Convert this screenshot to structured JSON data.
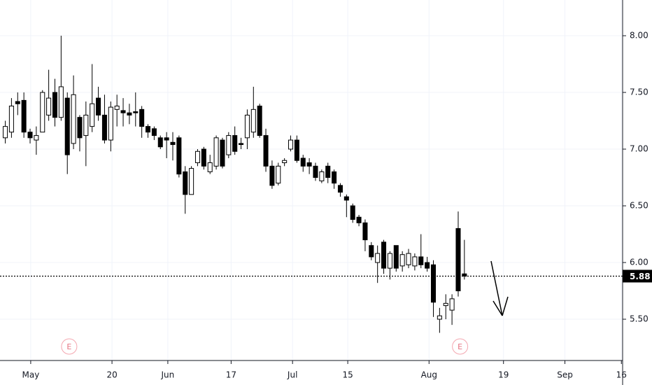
{
  "chart_data": {
    "type": "candlestick",
    "x": [
      0,
      1,
      2,
      3,
      4,
      5,
      6,
      7,
      8,
      9,
      10,
      11,
      12,
      13,
      14,
      15,
      16,
      17,
      18,
      19,
      20,
      21,
      22,
      23,
      24,
      25,
      26,
      27,
      28,
      29,
      30,
      31,
      32,
      33,
      34,
      35,
      36,
      37,
      38,
      39,
      40,
      41,
      42,
      43,
      44,
      45,
      46,
      47,
      48,
      49,
      50,
      51,
      52,
      53,
      54,
      55,
      56,
      57,
      58,
      59,
      60,
      61,
      62,
      63,
      64,
      65,
      66,
      67,
      68,
      69,
      70,
      71,
      72,
      73,
      74
    ],
    "open": [
      7.1,
      7.15,
      7.42,
      7.43,
      7.15,
      7.08,
      7.15,
      7.3,
      7.5,
      7.28,
      7.45,
      7.05,
      7.28,
      7.12,
      7.2,
      7.45,
      7.3,
      7.08,
      7.35,
      7.34,
      7.32,
      7.33,
      7.35,
      7.2,
      7.18,
      7.1,
      7.1,
      7.06,
      7.1,
      6.8,
      6.6,
      6.88,
      7.0,
      6.8,
      6.85,
      7.08,
      6.95,
      7.12,
      7.05,
      7.1,
      7.15,
      7.38,
      7.12,
      6.85,
      6.7,
      6.88,
      7.0,
      7.08,
      6.92,
      6.88,
      6.85,
      6.72,
      6.85,
      6.8,
      6.68,
      6.58,
      6.5,
      6.4,
      6.35,
      6.15,
      6.0,
      6.18,
      5.95,
      6.15,
      5.97,
      5.98,
      5.97,
      6.05,
      6.0,
      5.98,
      5.5,
      5.62,
      5.58,
      6.3,
      5.9
    ],
    "high": [
      7.25,
      7.45,
      7.5,
      7.5,
      7.18,
      7.2,
      7.52,
      7.7,
      7.62,
      8.0,
      7.5,
      7.65,
      7.3,
      7.42,
      7.75,
      7.55,
      7.48,
      7.42,
      7.48,
      7.45,
      7.4,
      7.5,
      7.38,
      7.22,
      7.2,
      7.12,
      7.15,
      7.15,
      7.12,
      6.85,
      6.85,
      7.0,
      7.02,
      6.95,
      7.12,
      7.1,
      7.15,
      7.2,
      7.1,
      7.35,
      7.55,
      7.4,
      7.18,
      6.9,
      6.88,
      6.92,
      7.12,
      7.12,
      6.95,
      6.92,
      6.88,
      6.82,
      6.88,
      6.82,
      6.7,
      6.6,
      6.52,
      6.42,
      6.38,
      6.18,
      6.15,
      6.2,
      6.1,
      6.15,
      6.1,
      6.12,
      6.08,
      6.25,
      6.05,
      6.02,
      5.6,
      5.72,
      5.72,
      6.45,
      6.2
    ],
    "low": [
      7.05,
      7.1,
      7.3,
      7.1,
      7.05,
      6.95,
      7.15,
      7.25,
      7.2,
      7.25,
      6.78,
      7.0,
      6.98,
      6.85,
      7.15,
      7.25,
      7.05,
      6.98,
      7.2,
      7.2,
      7.22,
      7.2,
      7.1,
      7.1,
      7.08,
      7.0,
      6.92,
      6.9,
      6.75,
      6.43,
      6.6,
      6.85,
      6.82,
      6.78,
      6.82,
      6.83,
      6.92,
      6.95,
      7.0,
      7.0,
      7.1,
      7.1,
      6.8,
      6.65,
      6.68,
      6.85,
      6.98,
      6.88,
      6.8,
      6.78,
      6.72,
      6.7,
      6.7,
      6.65,
      6.58,
      6.4,
      6.35,
      6.32,
      6.1,
      6.02,
      5.82,
      5.9,
      5.85,
      5.92,
      5.92,
      5.95,
      5.93,
      5.95,
      5.92,
      5.52,
      5.38,
      5.5,
      5.45,
      5.7,
      5.85
    ],
    "close": [
      7.2,
      7.38,
      7.4,
      7.15,
      7.1,
      7.12,
      7.5,
      7.45,
      7.28,
      7.55,
      6.95,
      7.48,
      7.1,
      7.3,
      7.4,
      7.3,
      7.08,
      7.37,
      7.38,
      7.32,
      7.3,
      7.32,
      7.2,
      7.15,
      7.12,
      7.02,
      7.08,
      7.04,
      6.78,
      6.6,
      6.83,
      6.98,
      6.85,
      6.88,
      7.1,
      6.85,
      7.12,
      6.98,
      7.04,
      7.3,
      7.35,
      7.12,
      6.85,
      6.68,
      6.85,
      6.9,
      7.08,
      6.9,
      6.85,
      6.85,
      6.75,
      6.8,
      6.75,
      6.7,
      6.62,
      6.55,
      6.38,
      6.35,
      6.2,
      6.05,
      6.08,
      5.95,
      6.08,
      5.95,
      6.07,
      6.08,
      6.05,
      5.98,
      5.95,
      5.65,
      5.53,
      5.64,
      5.68,
      5.75,
      5.88
    ],
    "colors": {
      "up": "#ffffff",
      "down": "#000000",
      "outline": "#000000"
    },
    "xlim": [
      -0.85,
      99.5
    ],
    "ylim": [
      5.136,
      8.315
    ],
    "xticks": [
      {
        "value": 4.1,
        "label": "May"
      },
      {
        "value": 17.2,
        "label": "20"
      },
      {
        "value": 26.2,
        "label": "Jun"
      },
      {
        "value": 36.4,
        "label": "17"
      },
      {
        "value": 46.3,
        "label": "Jul"
      },
      {
        "value": 55.2,
        "label": "15"
      },
      {
        "value": 68.3,
        "label": "Aug"
      },
      {
        "value": 80.3,
        "label": "19"
      },
      {
        "value": 90.2,
        "label": "Sep"
      },
      {
        "value": 99.3,
        "label": "16"
      }
    ],
    "yticks": [
      {
        "value": 5.5,
        "label": "5.50"
      },
      {
        "value": 6,
        "label": "6.00"
      },
      {
        "value": 6.5,
        "label": "6.50"
      },
      {
        "value": 7,
        "label": "7.00"
      },
      {
        "value": 7.5,
        "label": "7.50"
      },
      {
        "value": 8,
        "label": "8.00"
      }
    ],
    "grid": true,
    "last_price": 5.88,
    "events": [
      {
        "x": 10.3,
        "label": "E"
      },
      {
        "x": 73.3,
        "label": "E"
      }
    ]
  }
}
